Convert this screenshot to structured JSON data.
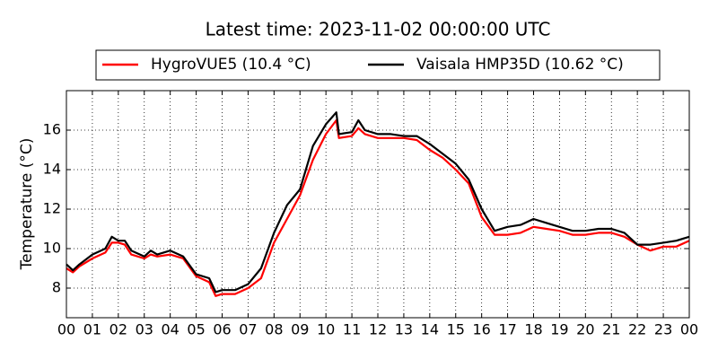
{
  "chart_data": {
    "type": "line",
    "title": "Latest time: 2023-11-02 00:00:00 UTC",
    "y_label": "Temperature (°C)",
    "x": [
      0,
      0.25,
      0.5,
      1,
      1.5,
      1.75,
      2,
      2.25,
      2.5,
      3,
      3.25,
      3.5,
      4,
      4.5,
      5,
      5.5,
      5.75,
      6,
      6.5,
      7,
      7.5,
      8,
      8.5,
      9,
      9.5,
      10,
      10.4,
      10.5,
      11,
      11.25,
      11.5,
      12,
      12.5,
      13,
      13.5,
      14,
      14.5,
      15,
      15.5,
      16,
      16.5,
      17,
      17.5,
      18,
      18.5,
      19,
      19.5,
      20,
      20.5,
      21,
      21.5,
      22,
      22.5,
      23,
      23.5,
      24
    ],
    "series": [
      {
        "name": "HygroVUE5 (10.4 °C)",
        "color": "#ff0000",
        "values": [
          9.0,
          8.8,
          9.1,
          9.5,
          9.8,
          10.3,
          10.3,
          10.2,
          9.7,
          9.5,
          9.7,
          9.6,
          9.7,
          9.5,
          8.6,
          8.3,
          7.6,
          7.7,
          7.7,
          8.0,
          8.5,
          10.3,
          11.5,
          12.7,
          14.5,
          15.8,
          16.5,
          15.6,
          15.7,
          16.1,
          15.8,
          15.6,
          15.6,
          15.6,
          15.5,
          15.0,
          14.6,
          14.0,
          13.3,
          11.6,
          10.7,
          10.7,
          10.8,
          11.1,
          11.0,
          10.9,
          10.7,
          10.7,
          10.8,
          10.8,
          10.6,
          10.2,
          9.9,
          10.1,
          10.1,
          10.4
        ]
      },
      {
        "name": "Vaisala HMP35D (10.62 °C)",
        "color": "#000000",
        "values": [
          9.2,
          8.9,
          9.2,
          9.7,
          10.0,
          10.6,
          10.4,
          10.4,
          9.9,
          9.6,
          9.9,
          9.7,
          9.9,
          9.6,
          8.7,
          8.5,
          7.8,
          7.9,
          7.9,
          8.2,
          9.0,
          10.8,
          12.2,
          13.0,
          15.2,
          16.3,
          16.9,
          15.8,
          15.9,
          16.5,
          16.0,
          15.8,
          15.8,
          15.7,
          15.7,
          15.3,
          14.8,
          14.3,
          13.5,
          12.0,
          10.9,
          11.1,
          11.2,
          11.5,
          11.3,
          11.1,
          10.9,
          10.9,
          11.0,
          11.0,
          10.8,
          10.2,
          10.2,
          10.3,
          10.4,
          10.6
        ]
      }
    ],
    "xlim": [
      0,
      24
    ],
    "xticks": [
      {
        "value": 0,
        "label": "00"
      },
      {
        "value": 1,
        "label": "01"
      },
      {
        "value": 2,
        "label": "02"
      },
      {
        "value": 3,
        "label": "03"
      },
      {
        "value": 4,
        "label": "04"
      },
      {
        "value": 5,
        "label": "05"
      },
      {
        "value": 6,
        "label": "06"
      },
      {
        "value": 7,
        "label": "07"
      },
      {
        "value": 8,
        "label": "08"
      },
      {
        "value": 9,
        "label": "09"
      },
      {
        "value": 10,
        "label": "10"
      },
      {
        "value": 11,
        "label": "11"
      },
      {
        "value": 12,
        "label": "12"
      },
      {
        "value": 13,
        "label": "13"
      },
      {
        "value": 14,
        "label": "14"
      },
      {
        "value": 15,
        "label": "15"
      },
      {
        "value": 16,
        "label": "16"
      },
      {
        "value": 17,
        "label": "17"
      },
      {
        "value": 18,
        "label": "18"
      },
      {
        "value": 19,
        "label": "19"
      },
      {
        "value": 20,
        "label": "20"
      },
      {
        "value": 21,
        "label": "21"
      },
      {
        "value": 22,
        "label": "22"
      },
      {
        "value": 23,
        "label": "23"
      },
      {
        "value": 24,
        "label": "00"
      }
    ],
    "ylim": [
      6.5,
      18
    ],
    "yticks": [
      8,
      10,
      12,
      14,
      16
    ],
    "grid": true
  }
}
